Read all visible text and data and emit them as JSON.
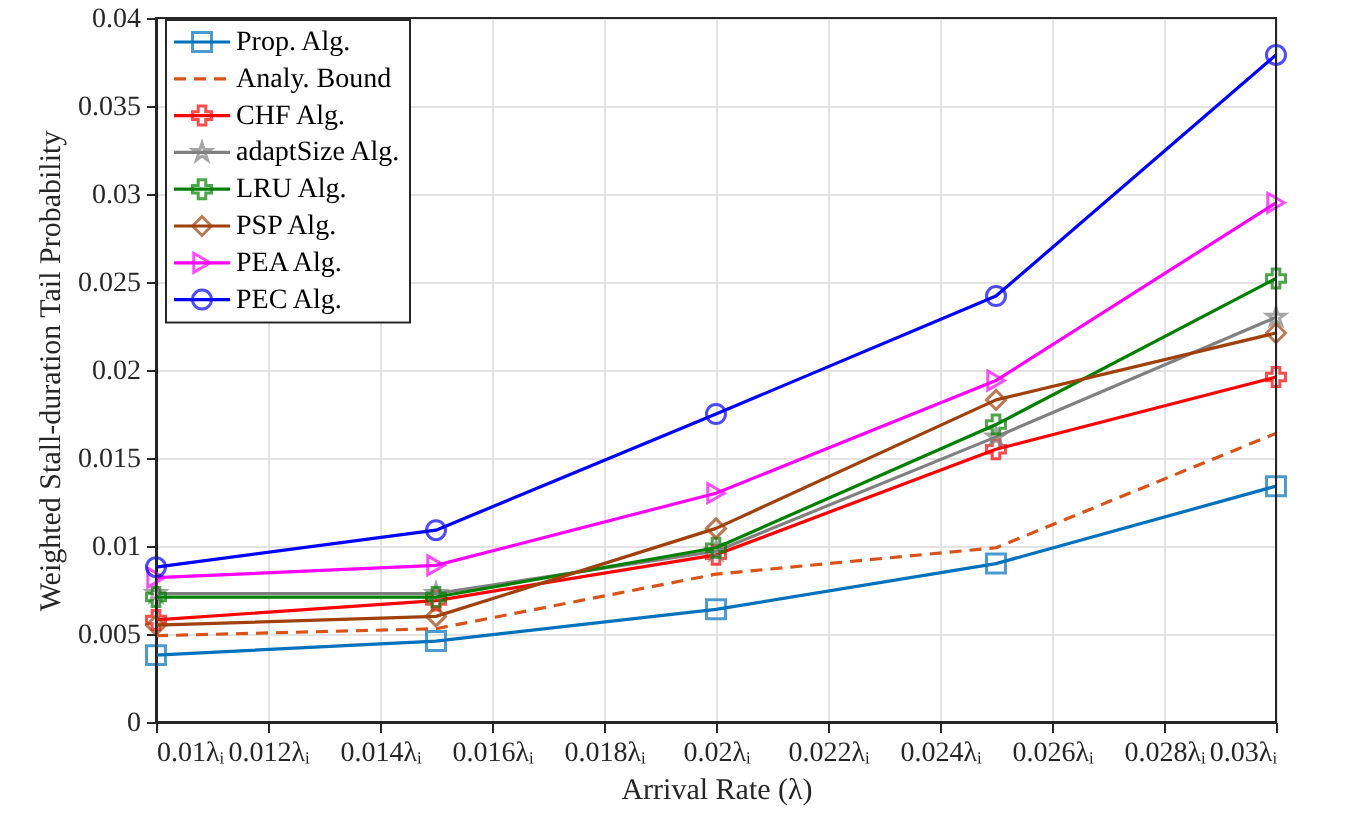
{
  "chart_data": {
    "type": "line",
    "xlabel": "Arrival Rate (λ)",
    "ylabel": "Weighted Stall-duration Tail Probability",
    "x": [
      0.01,
      0.015,
      0.02,
      0.025,
      0.03
    ],
    "series": [
      {
        "name": "Prop. Alg.",
        "color": "#0072bd",
        "marker": "square",
        "line_style": "solid",
        "values": [
          0.0038,
          0.0046,
          0.0064,
          0.009,
          0.0134
        ]
      },
      {
        "name": "Analy. Bound",
        "color": "#d95319",
        "marker": "none",
        "line_style": "dashed",
        "values": [
          0.0049,
          0.0053,
          0.0084,
          0.0099,
          0.0164
        ]
      },
      {
        "name": "CHF Alg.",
        "color": "#ff0000",
        "marker": "cross",
        "line_style": "solid",
        "values": [
          0.0058,
          0.0069,
          0.0095,
          0.0155,
          0.0196
        ]
      },
      {
        "name": "adaptSize Alg.",
        "color": "#808080",
        "marker": "star",
        "line_style": "solid",
        "values": [
          0.0073,
          0.0073,
          0.0097,
          0.0162,
          0.023
        ]
      },
      {
        "name": "LRU Alg.",
        "color": "#008000",
        "marker": "cross",
        "line_style": "solid",
        "values": [
          0.0071,
          0.0071,
          0.0099,
          0.0169,
          0.0252
        ]
      },
      {
        "name": "PSP Alg.",
        "color": "#a0410d",
        "marker": "diamond",
        "line_style": "solid",
        "values": [
          0.0055,
          0.006,
          0.011,
          0.0183,
          0.0221
        ]
      },
      {
        "name": "PEA Alg.",
        "color": "#ff00ff",
        "marker": "triangle",
        "line_style": "solid",
        "values": [
          0.0082,
          0.0089,
          0.013,
          0.0194,
          0.0295
        ]
      },
      {
        "name": "PEC Alg.",
        "color": "#0000ff",
        "marker": "circle",
        "line_style": "solid",
        "values": [
          0.0088,
          0.0109,
          0.0175,
          0.0242,
          0.0379
        ]
      }
    ],
    "xlim": [
      0.01,
      0.03
    ],
    "xticks": [
      {
        "value": 0.01,
        "label": "0.01λᵢ"
      },
      {
        "value": 0.012,
        "label": "0.012λᵢ"
      },
      {
        "value": 0.014,
        "label": "0.014λᵢ"
      },
      {
        "value": 0.016,
        "label": "0.016λᵢ"
      },
      {
        "value": 0.018,
        "label": "0.018λᵢ"
      },
      {
        "value": 0.02,
        "label": "0.02λᵢ"
      },
      {
        "value": 0.022,
        "label": "0.022λᵢ"
      },
      {
        "value": 0.024,
        "label": "0.024λᵢ"
      },
      {
        "value": 0.026,
        "label": "0.026λᵢ"
      },
      {
        "value": 0.028,
        "label": "0.028λᵢ"
      },
      {
        "value": 0.03,
        "label": "0.03λᵢ"
      }
    ],
    "ylim": [
      0,
      0.04
    ],
    "yticks": [
      {
        "value": 0,
        "label": "0"
      },
      0.005,
      {
        "value": 0.01,
        "label": "0.01"
      },
      0.015,
      {
        "value": 0.02,
        "label": "0.02"
      },
      0.025,
      {
        "value": 0.03,
        "label": "0.03"
      },
      0.035,
      {
        "value": 0.04,
        "label": "0.04"
      }
    ],
    "grid": true,
    "legend": "top left"
  }
}
